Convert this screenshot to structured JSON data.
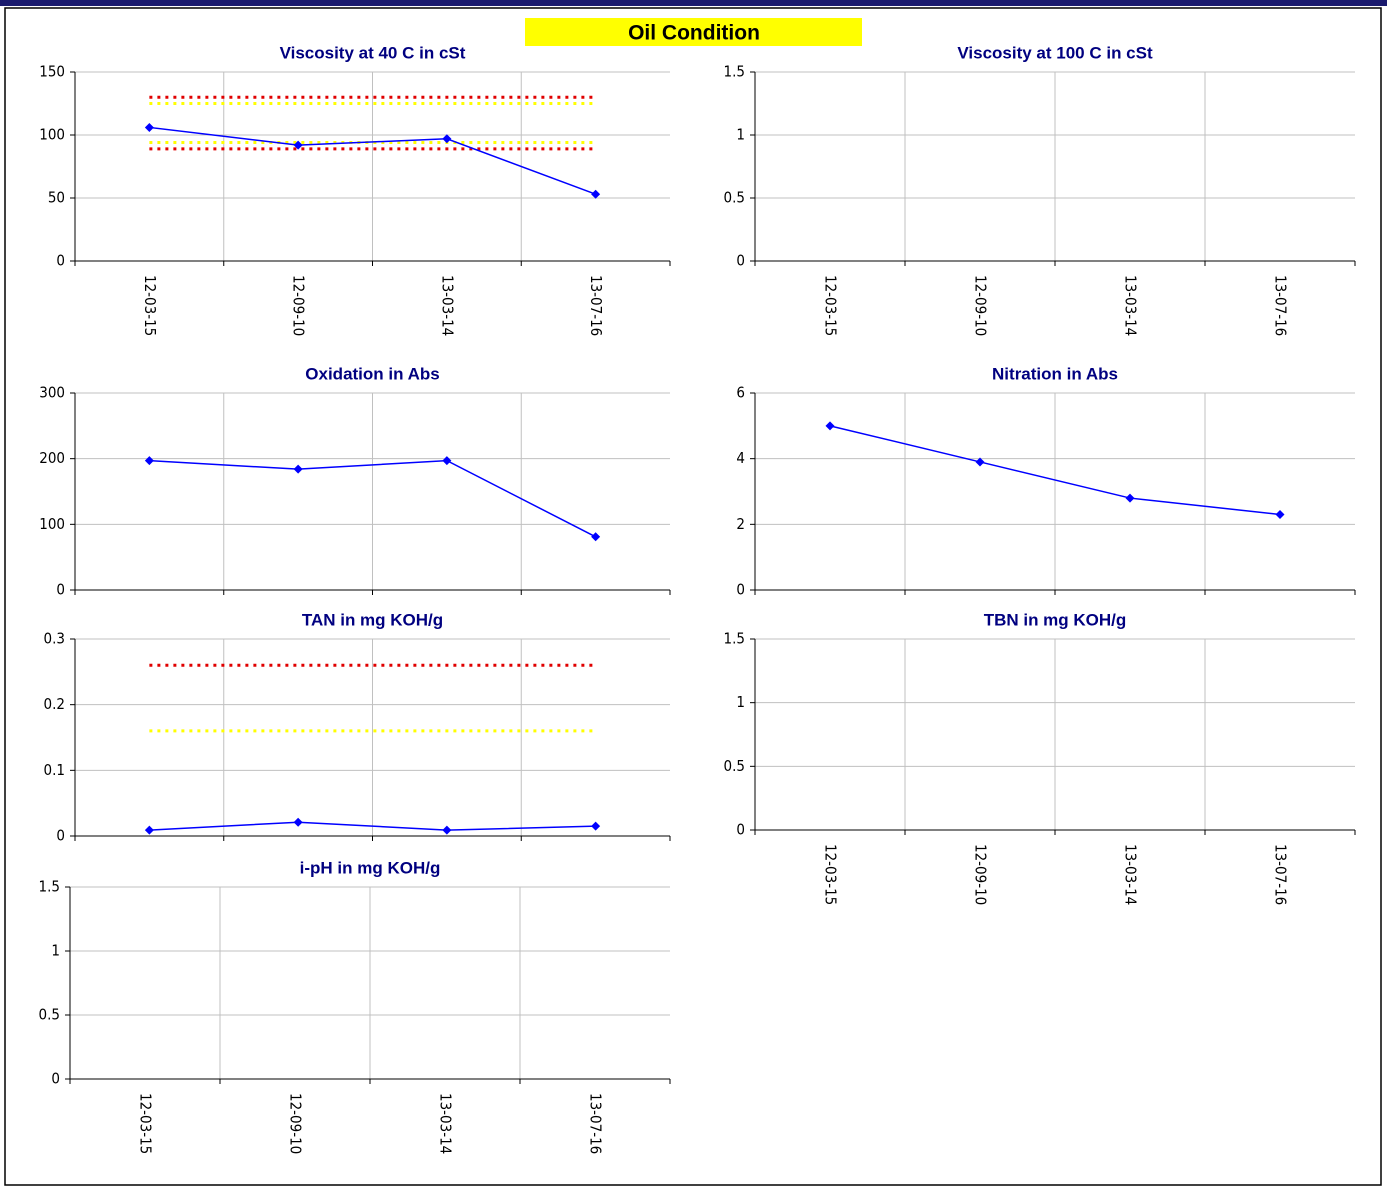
{
  "header": {
    "title": "Oil Condition"
  },
  "chart_data": [
    {
      "type": "line",
      "title": "Viscosity at 40 C in cSt",
      "categories": [
        "12-03-15",
        "12-09-10",
        "13-03-14",
        "13-07-16"
      ],
      "series": [
        {
          "color": "#0000ff",
          "values": [
            106,
            92,
            97,
            53
          ]
        }
      ],
      "reference_lines": [
        {
          "value": 130,
          "color": "#e00000"
        },
        {
          "value": 125,
          "color": "#ffff00"
        },
        {
          "value": 94,
          "color": "#ffff00"
        },
        {
          "value": 89,
          "color": "#e00000"
        }
      ],
      "ylim": [
        0,
        150
      ],
      "yticks": [
        0,
        50,
        100,
        150
      ],
      "grid": true
    },
    {
      "type": "line",
      "title": "Viscosity at 100 C in cSt",
      "categories": [
        "12-03-15",
        "12-09-10",
        "13-03-14",
        "13-07-16"
      ],
      "series": [
        {
          "color": "#0000ff",
          "values": [
            null,
            null,
            null,
            null
          ]
        }
      ],
      "ylim": [
        0,
        1.5
      ],
      "yticks": [
        0,
        0.5,
        1,
        1.5
      ],
      "grid": true
    },
    {
      "type": "line",
      "title": "Oxidation in Abs",
      "series": [
        {
          "color": "#0000ff",
          "values": [
            197,
            184,
            197,
            81
          ]
        }
      ],
      "ylim": [
        0,
        300
      ],
      "yticks": [
        0,
        100,
        200,
        300
      ],
      "grid": true
    },
    {
      "type": "line",
      "title": "Nitration in Abs",
      "series": [
        {
          "color": "#0000ff",
          "values": [
            5,
            3.9,
            2.8,
            2.3
          ]
        }
      ],
      "ylim": [
        0,
        6
      ],
      "yticks": [
        0,
        2,
        4,
        6
      ],
      "grid": true
    },
    {
      "type": "line",
      "title": "TAN in mg KOH/g",
      "series": [
        {
          "color": "#0000ff",
          "values": [
            0.009,
            0.021,
            0.009,
            0.015
          ]
        }
      ],
      "reference_lines": [
        {
          "value": 0.26,
          "color": "#e00000"
        },
        {
          "value": 0.16,
          "color": "#ffff00"
        }
      ],
      "ylim": [
        0,
        0.3
      ],
      "yticks": [
        0,
        0.1,
        0.2,
        0.3
      ],
      "grid": true
    },
    {
      "type": "line",
      "title": "TBN in mg KOH/g",
      "categories": [
        "12-03-15",
        "12-09-10",
        "13-03-14",
        "13-07-16"
      ],
      "series": [
        {
          "color": "#0000ff",
          "values": [
            null,
            null,
            null,
            null
          ]
        }
      ],
      "ylim": [
        0,
        1.5
      ],
      "yticks": [
        0,
        0.5,
        1,
        1.5
      ],
      "grid": true
    },
    {
      "type": "line",
      "title": "i-pH in mg KOH/g",
      "categories": [
        "12-03-15",
        "12-09-10",
        "13-03-14",
        "13-07-16"
      ],
      "series": [
        {
          "color": "#0000ff",
          "values": [
            null,
            null,
            null,
            null
          ]
        }
      ],
      "ylim": [
        0,
        1.5
      ],
      "yticks": [
        0,
        0.5,
        1,
        1.5
      ],
      "grid": true
    }
  ]
}
